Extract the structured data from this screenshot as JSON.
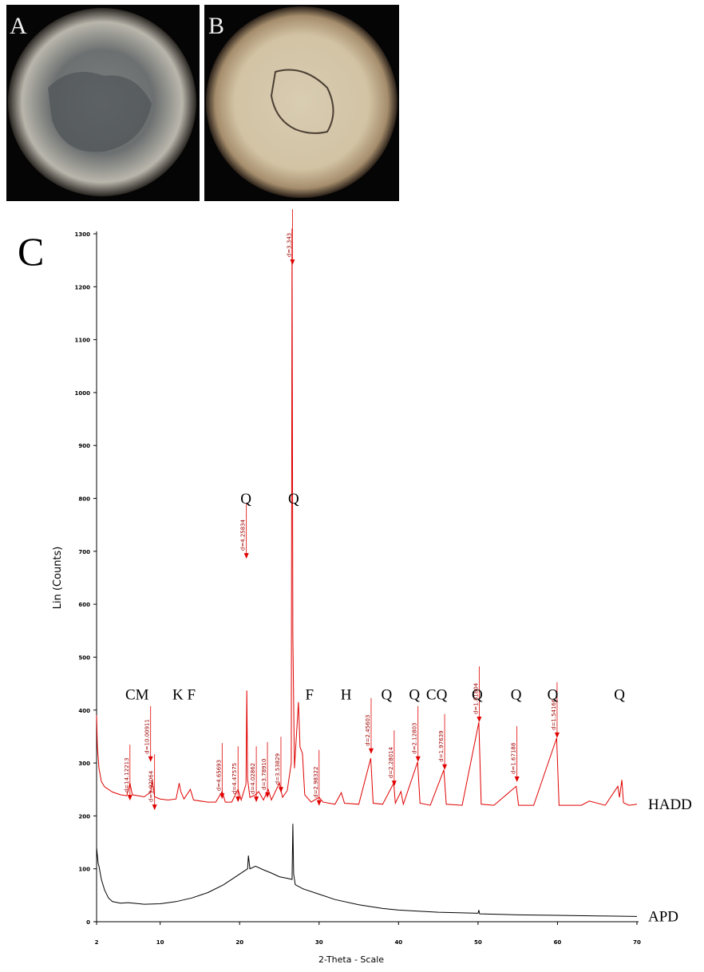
{
  "panel_labels": [
    "A",
    "B"
  ],
  "chart_data": {
    "type": "line",
    "panel_label": "C",
    "xlabel": "2-Theta - Scale",
    "ylabel": "Lin (Counts)",
    "xlim": [
      2,
      70
    ],
    "ylim": [
      0,
      1300
    ],
    "xticks": [
      2,
      10,
      20,
      30,
      40,
      50,
      60,
      70
    ],
    "yticks": [
      0,
      100,
      200,
      300,
      400,
      500,
      600,
      700,
      800,
      900,
      1000,
      1100,
      1200,
      1300
    ],
    "series": [
      {
        "name": "HADD",
        "color": "#e00000",
        "x": [
          2.0,
          2.1,
          2.3,
          2.6,
          3,
          4,
          5,
          5.8,
          6.2,
          6.5,
          8,
          8.8,
          9.0,
          9.3,
          10,
          11,
          12,
          12.4,
          12.6,
          13,
          13.8,
          14.2,
          16,
          17,
          17.8,
          18.2,
          19,
          19.8,
          20.2,
          20.8,
          20.9,
          21.0,
          21.3,
          22,
          22.4,
          23,
          23.6,
          24,
          25,
          25.4,
          26,
          26.5,
          26.6,
          26.7,
          26.9,
          27.4,
          27.6,
          27.9,
          28.2,
          29,
          30,
          30.5,
          32,
          32.8,
          33.2,
          35,
          36.5,
          36.8,
          38,
          39.4,
          39.6,
          40.3,
          40.6,
          42.4,
          42.7,
          44,
          45.7,
          46,
          48,
          50.1,
          50.4,
          52,
          54.8,
          55.1,
          57,
          59.9,
          60.2,
          63,
          64,
          66,
          67.6,
          67.8,
          68.1,
          68.3,
          69,
          70
        ],
        "values": [
          390,
          330,
          290,
          265,
          255,
          245,
          240,
          238,
          262,
          240,
          236,
          245,
          268,
          236,
          232,
          230,
          232,
          262,
          246,
          232,
          250,
          230,
          226,
          226,
          246,
          226,
          226,
          250,
          230,
          260,
          437,
          270,
          235,
          240,
          246,
          230,
          250,
          230,
          262,
          235,
          248,
          300,
          1310,
          540,
          290,
          415,
          330,
          318,
          240,
          226,
          235,
          226,
          222,
          244,
          224,
          222,
          309,
          224,
          222,
          262,
          224,
          246,
          222,
          302,
          224,
          220,
          287,
          222,
          220,
          377,
          222,
          220,
          256,
          220,
          220,
          347,
          220,
          220,
          228,
          220,
          256,
          235,
          268,
          225,
          220,
          222
        ]
      },
      {
        "name": "APD",
        "color": "#000000",
        "x": [
          2.0,
          2.2,
          2.3,
          2.6,
          3,
          3.5,
          4,
          5,
          6,
          8,
          10,
          12,
          14,
          16,
          18,
          20,
          21,
          21.1,
          21.3,
          22,
          23,
          24,
          25,
          26,
          26.6,
          26.7,
          26.8,
          27,
          28,
          30,
          32,
          35,
          38,
          40,
          45,
          50,
          50.1,
          50.2,
          55,
          60,
          65,
          70
        ],
        "values": [
          140,
          110,
          105,
          80,
          60,
          45,
          38,
          35,
          36,
          33,
          34,
          38,
          45,
          55,
          70,
          90,
          100,
          125,
          100,
          105,
          98,
          92,
          85,
          82,
          80,
          185,
          90,
          70,
          62,
          52,
          42,
          32,
          25,
          22,
          18,
          16,
          22,
          15,
          13,
          12,
          11,
          10
        ]
      }
    ],
    "peak_labels": [
      {
        "label": "d=14.12213",
        "x": 6.2,
        "y": 229
      },
      {
        "label": "d=10.00911",
        "x": 8.8,
        "y": 302
      },
      {
        "label": "d=9.92064",
        "x": 9.3,
        "y": 211
      },
      {
        "label": "d=4.65693",
        "x": 17.8,
        "y": 232
      },
      {
        "label": "d=4.47575",
        "x": 19.8,
        "y": 226
      },
      {
        "label": "d=4.25834",
        "x": 20.85,
        "y": 686
      },
      {
        "label": "d=4.02862",
        "x": 22.1,
        "y": 226
      },
      {
        "label": "d=3.78910",
        "x": 23.5,
        "y": 234
      },
      {
        "label": "d=3.53829",
        "x": 25.2,
        "y": 244
      },
      {
        "label": "d=3.343",
        "x": 26.65,
        "y": 1241
      },
      {
        "label": "d=2.98322",
        "x": 30.0,
        "y": 219
      },
      {
        "label": "d=2.45603",
        "x": 36.55,
        "y": 317
      },
      {
        "label": "d=2.28014",
        "x": 39.45,
        "y": 256
      },
      {
        "label": "d=2.12803",
        "x": 42.45,
        "y": 302
      },
      {
        "label": "d=1.97639",
        "x": 45.8,
        "y": 287
      },
      {
        "label": "d=1.81804",
        "x": 50.15,
        "y": 377
      },
      {
        "label": "d=1.67188",
        "x": 54.9,
        "y": 264
      },
      {
        "label": "d=1.54166",
        "x": 59.95,
        "y": 347
      }
    ],
    "phase_labels": [
      {
        "label": "CM",
        "x": 7.1,
        "y": 420
      },
      {
        "label": "K F",
        "x": 13.0,
        "y": 420
      },
      {
        "label": "Q",
        "x": 20.8,
        "y": 790
      },
      {
        "label": "Q",
        "x": 26.8,
        "y": 790
      },
      {
        "label": "F",
        "x": 28.8,
        "y": 420
      },
      {
        "label": "H",
        "x": 33.4,
        "y": 420
      },
      {
        "label": "Q",
        "x": 38.5,
        "y": 420
      },
      {
        "label": "Q",
        "x": 42.0,
        "y": 420
      },
      {
        "label": "CQ",
        "x": 44.8,
        "y": 420
      },
      {
        "label": "Q",
        "x": 49.9,
        "y": 420
      },
      {
        "label": "Q",
        "x": 54.8,
        "y": 420
      },
      {
        "label": "Q",
        "x": 59.4,
        "y": 420
      },
      {
        "label": "Q",
        "x": 67.8,
        "y": 420
      }
    ]
  }
}
